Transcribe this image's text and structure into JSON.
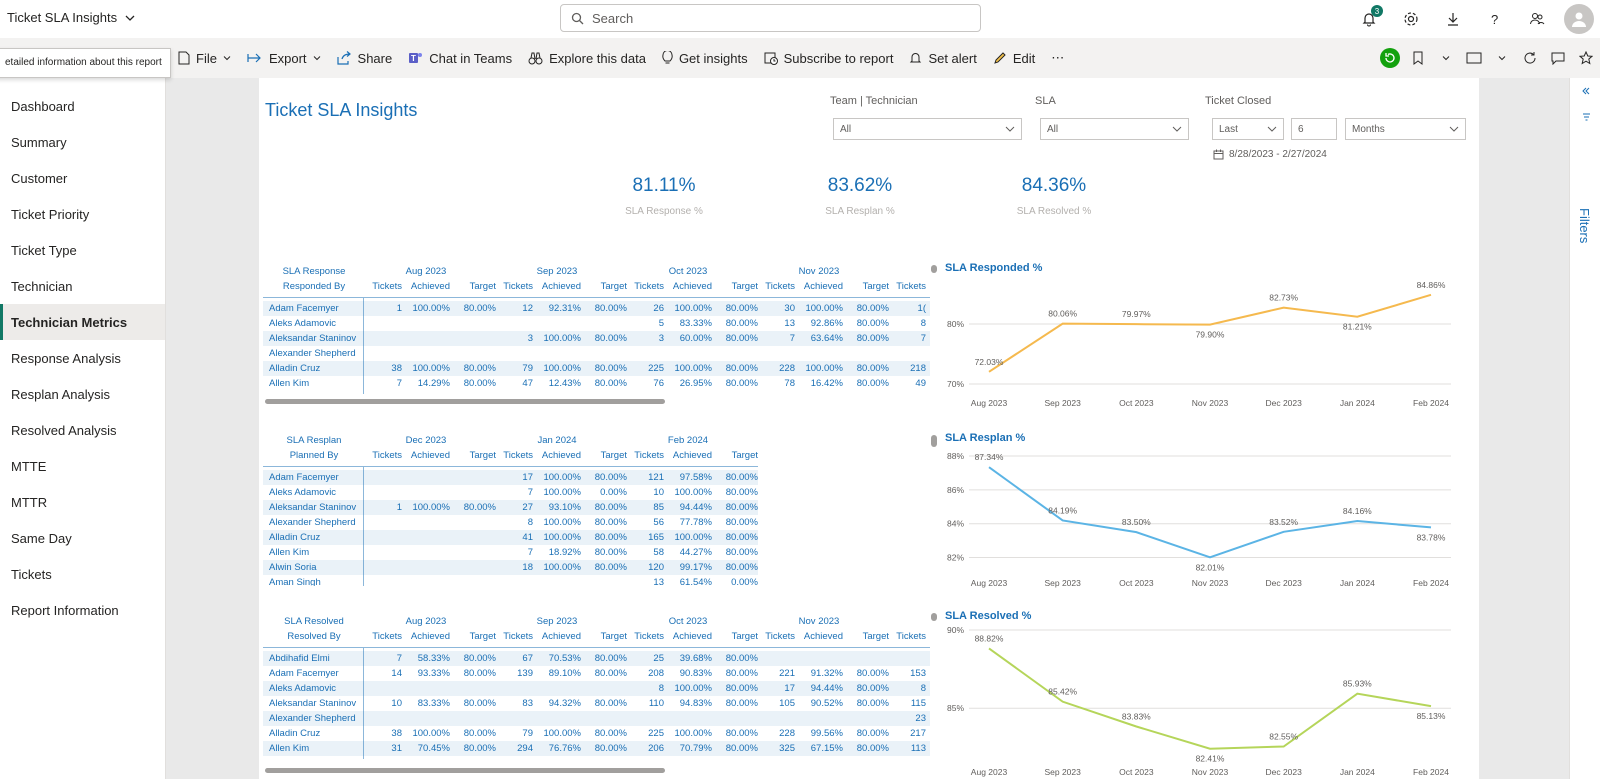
{
  "app": {
    "title": "Ticket SLA Insights"
  },
  "search": {
    "placeholder": "Search"
  },
  "notifications": {
    "count": "3"
  },
  "tooltip": "etailed information about this report",
  "toolbar": {
    "file": "File",
    "export": "Export",
    "share": "Share",
    "chat": "Chat in Teams",
    "explore": "Explore this data",
    "insights": "Get insights",
    "subscribe": "Subscribe to report",
    "alert": "Set alert",
    "edit": "Edit",
    "more": "⋯"
  },
  "sidebar": {
    "items": [
      {
        "label": "Dashboard"
      },
      {
        "label": "Summary"
      },
      {
        "label": "Customer"
      },
      {
        "label": "Ticket Priority"
      },
      {
        "label": "Ticket Type"
      },
      {
        "label": "Technician"
      },
      {
        "label": "Technician Metrics"
      },
      {
        "label": "Response Analysis"
      },
      {
        "label": "Resplan Analysis"
      },
      {
        "label": "Resolved Analysis"
      },
      {
        "label": "MTTE"
      },
      {
        "label": "MTTR"
      },
      {
        "label": "Same Day"
      },
      {
        "label": "Tickets"
      },
      {
        "label": "Report Information"
      }
    ],
    "active_index": 6
  },
  "filters_pane": {
    "label": "Filters"
  },
  "report": {
    "title": "Ticket SLA Insights",
    "slicers": {
      "team": {
        "label": "Team | Technician",
        "value": "All"
      },
      "sla": {
        "label": "SLA",
        "value": "All"
      },
      "closed": {
        "label": "Ticket Closed",
        "mode": "Last",
        "number": "6",
        "unit": "Months",
        "range": "8/28/2023 - 2/27/2024"
      }
    },
    "kpis": [
      {
        "value": "81.11%",
        "label": "SLA Response %"
      },
      {
        "value": "83.62%",
        "label": "SLA Resplan %"
      },
      {
        "value": "84.36%",
        "label": "SLA Resolved %"
      }
    ]
  },
  "tables": {
    "response": {
      "corner": [
        "SLA Response",
        "Responded By"
      ],
      "months": [
        "Aug 2023",
        "Sep 2023",
        "Oct 2023",
        "Nov 2023"
      ],
      "cols": [
        "Tickets",
        "Achieved",
        "Target"
      ],
      "rows": [
        {
          "name": "Adam Facemyer",
          "v": [
            "1",
            "100.00%",
            "80.00%",
            "12",
            "92.31%",
            "80.00%",
            "26",
            "100.00%",
            "80.00%",
            "30",
            "100.00%",
            "80.00%",
            "1("
          ]
        },
        {
          "name": "Aleks Adamovic",
          "v": [
            "",
            "",
            "",
            "",
            "",
            "",
            "5",
            "83.33%",
            "80.00%",
            "13",
            "92.86%",
            "80.00%",
            "8"
          ]
        },
        {
          "name": "Aleksandar Staninov",
          "v": [
            "",
            "",
            "",
            "3",
            "100.00%",
            "80.00%",
            "3",
            "60.00%",
            "80.00%",
            "7",
            "63.64%",
            "80.00%",
            "7"
          ]
        },
        {
          "name": "Alexander Shepherd",
          "v": [
            "",
            "",
            "",
            "",
            "",
            "",
            "",
            "",
            "",
            "",
            "",
            "",
            ""
          ]
        },
        {
          "name": "Alladin Cruz",
          "v": [
            "38",
            "100.00%",
            "80.00%",
            "79",
            "100.00%",
            "80.00%",
            "225",
            "100.00%",
            "80.00%",
            "228",
            "100.00%",
            "80.00%",
            "218"
          ]
        },
        {
          "name": "Allen Kim",
          "v": [
            "7",
            "14.29%",
            "80.00%",
            "47",
            "12.43%",
            "80.00%",
            "76",
            "26.95%",
            "80.00%",
            "78",
            "16.42%",
            "80.00%",
            "49"
          ]
        }
      ]
    },
    "resplan": {
      "corner": [
        "SLA Resplan",
        "Planned By"
      ],
      "months": [
        "Dec 2023",
        "Jan 2024",
        "Feb 2024"
      ],
      "cols": [
        "Tickets",
        "Achieved",
        "Target"
      ],
      "rows": [
        {
          "name": "Adam Facemyer",
          "v": [
            "",
            "",
            "",
            "17",
            "100.00%",
            "80.00%",
            "121",
            "97.58%",
            "80.00%"
          ]
        },
        {
          "name": "Aleks Adamovic",
          "v": [
            "",
            "",
            "",
            "7",
            "100.00%",
            "0.00%",
            "10",
            "100.00%",
            "80.00%"
          ]
        },
        {
          "name": "Aleksandar Staninov",
          "v": [
            "1",
            "100.00%",
            "80.00%",
            "27",
            "93.10%",
            "80.00%",
            "85",
            "94.44%",
            "80.00%"
          ]
        },
        {
          "name": "Alexander Shepherd",
          "v": [
            "",
            "",
            "",
            "8",
            "100.00%",
            "80.00%",
            "56",
            "77.78%",
            "80.00%"
          ]
        },
        {
          "name": "Alladin Cruz",
          "v": [
            "",
            "",
            "",
            "41",
            "100.00%",
            "80.00%",
            "165",
            "100.00%",
            "80.00%"
          ]
        },
        {
          "name": "Allen Kim",
          "v": [
            "",
            "",
            "",
            "7",
            "18.92%",
            "80.00%",
            "58",
            "44.27%",
            "80.00%"
          ]
        },
        {
          "name": "Alwin Soria",
          "v": [
            "",
            "",
            "",
            "18",
            "100.00%",
            "80.00%",
            "120",
            "99.17%",
            "80.00%"
          ]
        },
        {
          "name": "Aman Singh",
          "v": [
            "",
            "",
            "",
            "",
            "",
            "",
            "13",
            "61.54%",
            "0.00%"
          ]
        }
      ]
    },
    "resolved": {
      "corner": [
        "SLA Resolved",
        "Resolved By"
      ],
      "months": [
        "Aug 2023",
        "Sep 2023",
        "Oct 2023",
        "Nov 2023"
      ],
      "cols": [
        "Tickets",
        "Achieved",
        "Target"
      ],
      "rows": [
        {
          "name": "Abdihafid Elmi",
          "v": [
            "7",
            "58.33%",
            "80.00%",
            "67",
            "70.53%",
            "80.00%",
            "25",
            "39.68%",
            "80.00%",
            "",
            "",
            "",
            ""
          ]
        },
        {
          "name": "Adam Facemyer",
          "v": [
            "14",
            "93.33%",
            "80.00%",
            "139",
            "89.10%",
            "80.00%",
            "208",
            "90.83%",
            "80.00%",
            "221",
            "91.32%",
            "80.00%",
            "153"
          ]
        },
        {
          "name": "Aleks Adamovic",
          "v": [
            "",
            "",
            "",
            "",
            "",
            "",
            "8",
            "100.00%",
            "80.00%",
            "17",
            "94.44%",
            "80.00%",
            "8"
          ]
        },
        {
          "name": "Aleksandar Staninov",
          "v": [
            "10",
            "83.33%",
            "80.00%",
            "83",
            "94.32%",
            "80.00%",
            "110",
            "94.83%",
            "80.00%",
            "105",
            "90.52%",
            "80.00%",
            "115"
          ]
        },
        {
          "name": "Alexander Shepherd",
          "v": [
            "",
            "",
            "",
            "",
            "",
            "",
            "",
            "",
            "",
            "",
            "",
            "",
            "23"
          ]
        },
        {
          "name": "Alladin Cruz",
          "v": [
            "38",
            "100.00%",
            "80.00%",
            "79",
            "100.00%",
            "80.00%",
            "225",
            "100.00%",
            "80.00%",
            "228",
            "99.56%",
            "80.00%",
            "217"
          ]
        },
        {
          "name": "Allen Kim",
          "v": [
            "31",
            "70.45%",
            "80.00%",
            "294",
            "76.76%",
            "80.00%",
            "206",
            "70.79%",
            "80.00%",
            "325",
            "67.15%",
            "80.00%",
            "113"
          ]
        }
      ]
    }
  },
  "chart_data": [
    {
      "type": "line",
      "title": "SLA Responded %",
      "categories": [
        "Aug 2023",
        "Sep 2023",
        "Oct 2023",
        "Nov 2023",
        "Dec 2023",
        "Jan 2024",
        "Feb 2024"
      ],
      "values": [
        72.03,
        80.06,
        79.97,
        79.9,
        82.73,
        81.21,
        84.86
      ],
      "labels": [
        "72.03%",
        "80.06%",
        "79.97%",
        "79.90%",
        "82.73%",
        "81.21%",
        "84.86%"
      ],
      "yticks": [
        "80%",
        "70%"
      ],
      "ylim": [
        70,
        86
      ],
      "color": "#f5b94e"
    },
    {
      "type": "line",
      "title": "SLA Resplan %",
      "categories": [
        "Aug 2023",
        "Sep 2023",
        "Oct 2023",
        "Nov 2023",
        "Dec 2023",
        "Jan 2024",
        "Feb 2024"
      ],
      "values": [
        87.34,
        84.19,
        83.5,
        82.01,
        83.52,
        84.16,
        83.78
      ],
      "labels": [
        "87.34%",
        "84.19%",
        "83.50%",
        "82.01%",
        "83.52%",
        "84.16%",
        "83.78%"
      ],
      "yticks": [
        "88%",
        "86%",
        "84%",
        "82%"
      ],
      "ylim": [
        81.5,
        88
      ],
      "color": "#5bb4e5"
    },
    {
      "type": "line",
      "title": "SLA Resolved %",
      "categories": [
        "Aug 2023",
        "Sep 2023",
        "Oct 2023",
        "Nov 2023",
        "Dec 2023",
        "Jan 2024",
        "Feb 2024"
      ],
      "values": [
        88.82,
        85.42,
        83.83,
        82.41,
        82.55,
        85.93,
        85.13
      ],
      "labels": [
        "88.82%",
        "85.42%",
        "83.83%",
        "82.41%",
        "82.55%",
        "85.93%",
        "85.13%"
      ],
      "yticks": [
        "90%",
        "85%"
      ],
      "ylim": [
        82.2,
        90
      ],
      "color": "#b5d55a"
    }
  ]
}
